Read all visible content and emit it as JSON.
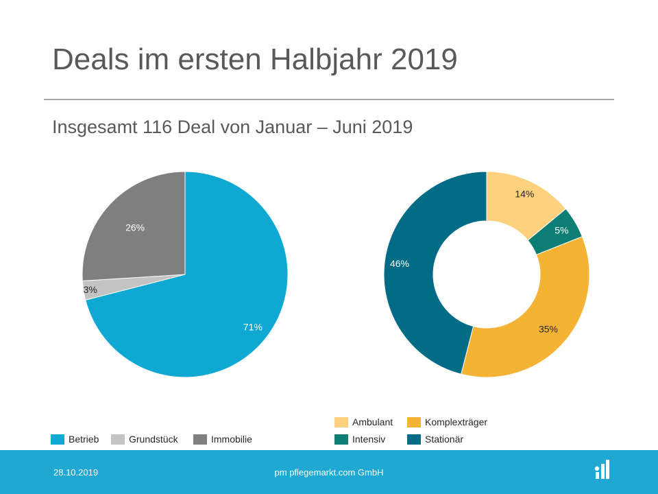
{
  "slide": {
    "title": "Deals im ersten Halbjahr 2019",
    "subtitle": "Insgesamt 116 Deal von Januar – Juni 2019"
  },
  "footer": {
    "date": "28.10.2019",
    "company": "pm pflegemarkt.com GmbH"
  },
  "chart_data": [
    {
      "type": "pie",
      "title": "",
      "categories": [
        "Betrieb",
        "Grundstück",
        "Immobilie"
      ],
      "values": [
        71,
        3,
        26
      ],
      "labels": [
        "71%",
        "3%",
        "26%"
      ],
      "colors": [
        "#0fa8d2",
        "#c3c3c3",
        "#7f7f7f"
      ],
      "legend_position": "bottom"
    },
    {
      "type": "pie",
      "variant": "donut",
      "title": "",
      "categories": [
        "Ambulant",
        "Intensiv",
        "Komplexträger",
        "Stationär"
      ],
      "values": [
        14,
        5,
        35,
        46
      ],
      "labels": [
        "14%",
        "5%",
        "35%",
        "46%"
      ],
      "colors": [
        "#fdd17e",
        "#0c7e73",
        "#f5b335",
        "#026b86"
      ],
      "legend_position": "bottom"
    }
  ]
}
